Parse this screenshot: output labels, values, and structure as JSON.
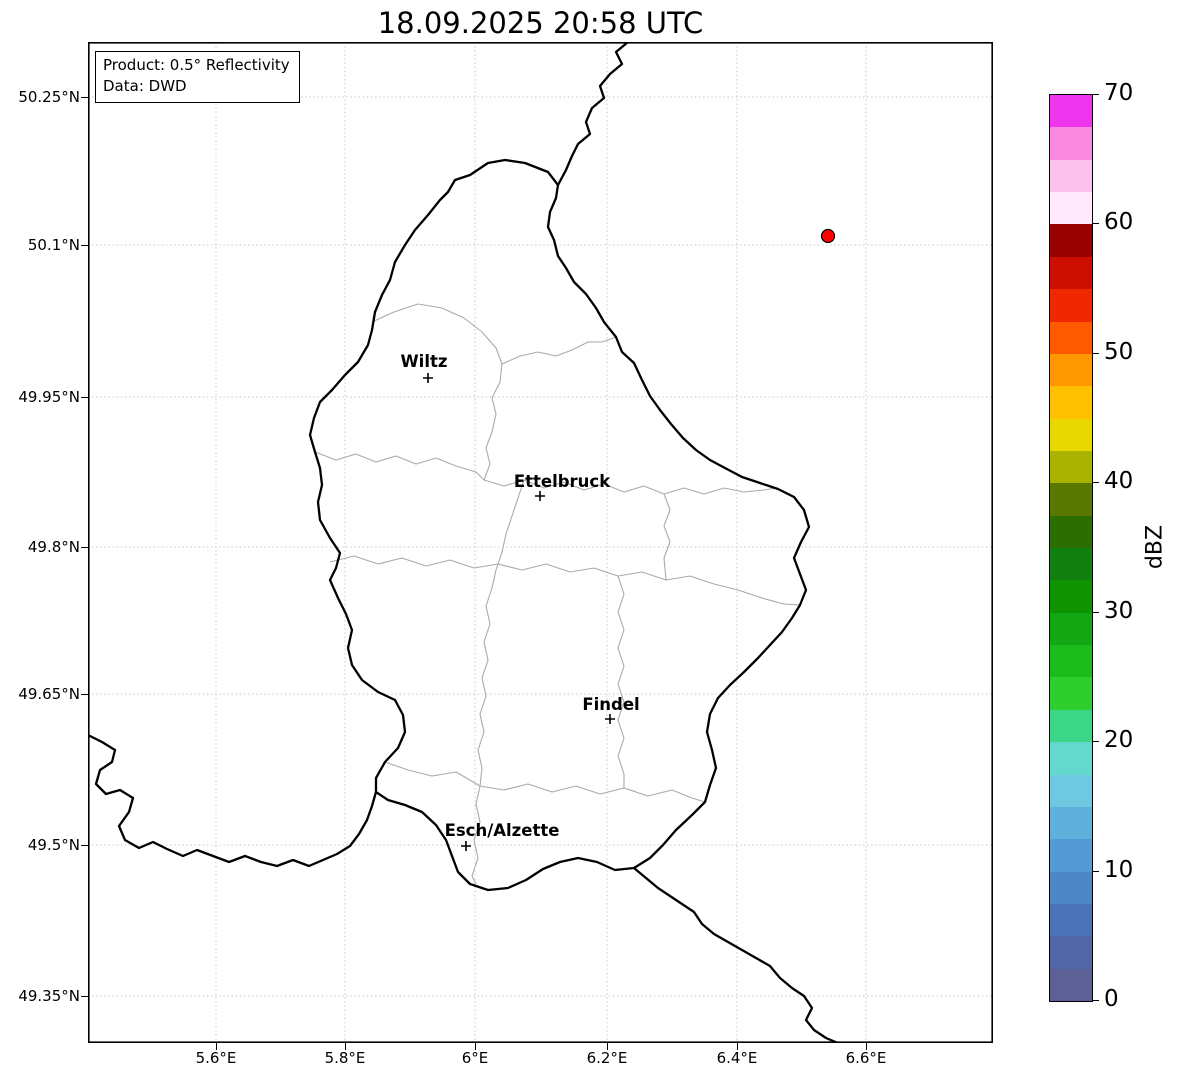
{
  "title": "18.09.2025 20:58 UTC",
  "info_box": {
    "line1": "Product: 0.5° Reflectivity",
    "line2": "Data: DWD"
  },
  "axes": {
    "y_ticks": [
      "50.25°N",
      "50.1°N",
      "49.95°N",
      "49.8°N",
      "49.65°N",
      "49.5°N",
      "49.35°N"
    ],
    "x_ticks": [
      "5.6°E",
      "5.8°E",
      "6°E",
      "6.2°E",
      "6.4°E",
      "6.6°E"
    ]
  },
  "map": {
    "cities": [
      {
        "name": "Wiltz"
      },
      {
        "name": "Ettelbruck"
      },
      {
        "name": "Findel"
      },
      {
        "name": "Esch/Alzette"
      }
    ],
    "country_border_color": "#000000",
    "district_border_color": "#aaaaaa",
    "gridline_color": "#c8c8c8",
    "radar_marker_color": "#ff0000"
  },
  "colorbar": {
    "label": "dBZ",
    "min": 0,
    "max": 70,
    "ticks": [
      "70",
      "60",
      "50",
      "40",
      "30",
      "20",
      "10",
      "0"
    ],
    "colors_bottom_to_top": [
      "#5c6094",
      "#5366a6",
      "#4b74b8",
      "#4e86c8",
      "#549ad6",
      "#60b0dc",
      "#6fc8e2",
      "#63d8cc",
      "#3bd688",
      "#2ece2e",
      "#1cbc1c",
      "#13a813",
      "#0f9400",
      "#128010",
      "#2d6e00",
      "#5a7800",
      "#a8b400",
      "#e8d800",
      "#ffc000",
      "#ff9800",
      "#ff5a00",
      "#f02800",
      "#cc0f00",
      "#990000",
      "#ffe9fb",
      "#fdc1ee",
      "#f98ae0",
      "#ef35ee"
    ]
  }
}
